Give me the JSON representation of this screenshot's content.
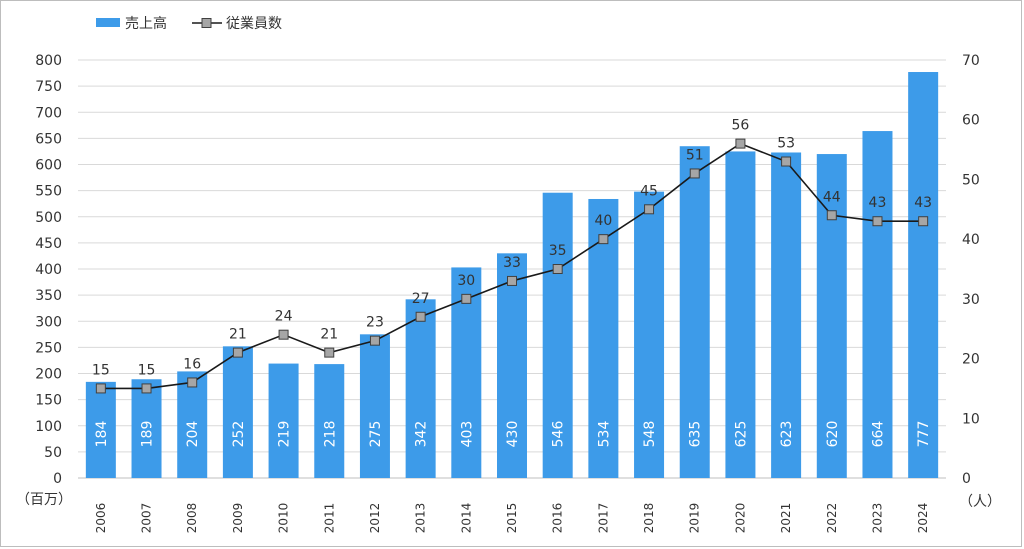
{
  "chart_data": {
    "type": "bar",
    "categories": [
      "2006",
      "2007",
      "2008",
      "2009",
      "2010",
      "2011",
      "2012",
      "2013",
      "2014",
      "2015",
      "2016",
      "2017",
      "2018",
      "2019",
      "2020",
      "2021",
      "2022",
      "2023",
      "2024"
    ],
    "series": [
      {
        "name": "売上高",
        "type": "bar",
        "axis": "left",
        "color": "#3d9be9",
        "values": [
          184,
          189,
          204,
          252,
          219,
          218,
          275,
          342,
          403,
          430,
          546,
          534,
          548,
          635,
          625,
          623,
          620,
          664,
          777
        ]
      },
      {
        "name": "従業員数",
        "type": "line",
        "axis": "right",
        "color": "#1a1a1a",
        "marker_color": "#a6a6a6",
        "values": [
          15,
          15,
          16,
          21,
          24,
          21,
          23,
          27,
          30,
          33,
          35,
          40,
          45,
          51,
          56,
          53,
          44,
          43,
          43
        ]
      }
    ],
    "y_left": {
      "unit": "（百万）",
      "ylim": [
        0,
        800
      ],
      "ticks": [
        0,
        50,
        100,
        150,
        200,
        250,
        300,
        350,
        400,
        450,
        500,
        550,
        600,
        650,
        700,
        750,
        800
      ]
    },
    "y_right": {
      "unit": "（人）",
      "ylim": [
        0,
        70
      ],
      "ticks": [
        0,
        10,
        20,
        30,
        40,
        50,
        60,
        70
      ]
    },
    "grid": true,
    "legend": "top-left"
  }
}
